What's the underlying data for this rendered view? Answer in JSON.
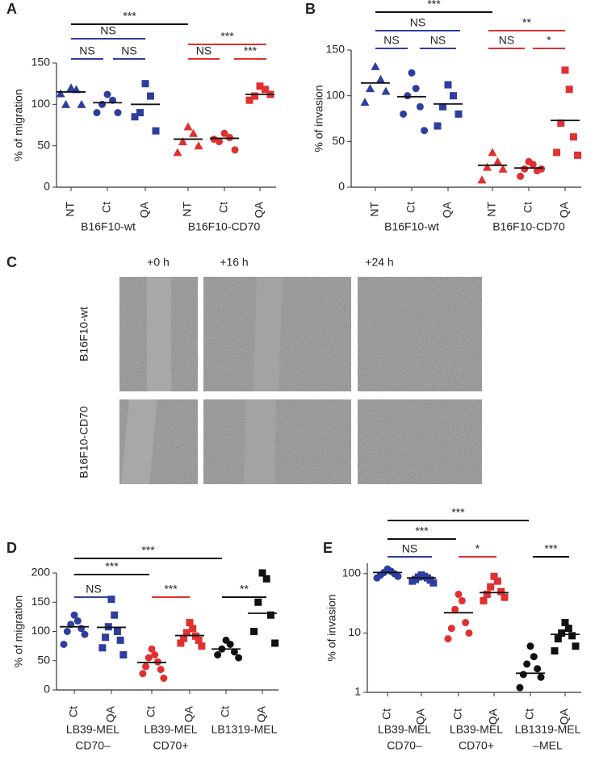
{
  "chart_data": [
    {
      "type": "dot",
      "label": "A",
      "ylabel": "% of migration",
      "ylim": [
        0,
        150
      ],
      "yticks": [
        0,
        50,
        100,
        150
      ],
      "groups": [
        {
          "name": [
            "B16F10-wt"
          ],
          "color": "#2e3da0",
          "categories": [
            "NT",
            "Ct",
            "QA"
          ],
          "markers": [
            "triangle",
            "circle",
            "square"
          ],
          "values": [
            [
              120,
              118,
              100,
              100,
              113
            ],
            [
              112,
              105,
              100,
              90,
              90
            ],
            [
              125,
              110,
              90,
              68,
              85
            ]
          ],
          "means": [
            115,
            102,
            100
          ]
        },
        {
          "name": [
            "B16F10-CD70"
          ],
          "color": "#e0302f",
          "categories": [
            "NT",
            "Ct",
            "QA"
          ],
          "markers": [
            "triangle",
            "circle",
            "square"
          ],
          "values": [
            [
              73,
              65,
              55,
              50,
              42
            ],
            [
              65,
              60,
              55,
              45,
              58
            ],
            [
              122,
              118,
              110,
              112,
              105
            ]
          ],
          "means": [
            58,
            59,
            112
          ]
        }
      ],
      "brackets": [
        {
          "text": "***",
          "color": "#111111"
        },
        {
          "text": "NS",
          "color": "#2e3da0"
        },
        {
          "text": "***",
          "color": "#e0302f"
        },
        {
          "text": "NS",
          "color": "#2e3da0"
        },
        {
          "text": "NS",
          "color": "#2e3da0"
        },
        {
          "text": "NS",
          "color": "#e0302f"
        },
        {
          "text": "***",
          "color": "#e0302f"
        }
      ]
    },
    {
      "type": "dot",
      "label": "B",
      "ylabel": "% of invasion",
      "ylim": [
        0,
        150
      ],
      "yticks": [
        0,
        50,
        100,
        150
      ],
      "groups": [
        {
          "name": [
            "B16F10-wt"
          ],
          "color": "#2e3da0",
          "categories": [
            "NT",
            "Ct",
            "QA"
          ],
          "markers": [
            "triangle",
            "circle",
            "square"
          ],
          "values": [
            [
              132,
              118,
              108,
              105,
              93
            ],
            [
              125,
              108,
              100,
              88,
              80,
              62
            ],
            [
              112,
              100,
              88,
              80,
              67
            ]
          ],
          "means": [
            114,
            99,
            91
          ]
        },
        {
          "name": [
            "B16F10-CD70"
          ],
          "color": "#e0302f",
          "categories": [
            "NT",
            "Ct",
            "QA"
          ],
          "markers": [
            "triangle",
            "circle",
            "square"
          ],
          "values": [
            [
              38,
              28,
              22,
              20,
              8
            ],
            [
              28,
              25,
              20,
              18,
              12,
              20
            ],
            [
              128,
              107,
              70,
              55,
              38,
              35
            ]
          ],
          "means": [
            24,
            21,
            73
          ]
        }
      ],
      "brackets": [
        {
          "text": "***",
          "color": "#111111"
        },
        {
          "text": "NS",
          "color": "#2e3da0"
        },
        {
          "text": "**",
          "color": "#e0302f"
        },
        {
          "text": "NS",
          "color": "#2e3da0"
        },
        {
          "text": "NS",
          "color": "#2e3da0"
        },
        {
          "text": "NS",
          "color": "#e0302f"
        },
        {
          "text": "*",
          "color": "#e0302f"
        }
      ]
    },
    {
      "type": "dot",
      "label": "D",
      "ylabel": "% of migration",
      "ylim": [
        0,
        200
      ],
      "yticks": [
        0,
        50,
        100,
        150,
        200
      ],
      "groups": [
        {
          "name": [
            "LB39-MEL",
            "CD70–"
          ],
          "color": "#2e3da0",
          "categories": [
            "Ct",
            "QA"
          ],
          "markers": [
            "circle",
            "square"
          ],
          "values": [
            [
              128,
              118,
              112,
              105,
              100,
              95,
              78
            ],
            [
              155,
              128,
              108,
              100,
              90,
              85,
              72,
              60
            ]
          ],
          "means": [
            108,
            107
          ]
        },
        {
          "name": [
            "LB39-MEL",
            "CD70+"
          ],
          "color": "#e0302f",
          "categories": [
            "Ct",
            "QA"
          ],
          "markers": [
            "circle",
            "square"
          ],
          "values": [
            [
              70,
              60,
              55,
              48,
              40,
              35,
              28,
              20
            ],
            [
              115,
              105,
              98,
              92,
              88,
              85,
              80,
              75
            ]
          ],
          "means": [
            47,
            93
          ]
        },
        {
          "name": [
            "LB1319-MEL"
          ],
          "color": "#111111",
          "categories": [
            "Ct",
            "QA"
          ],
          "markers": [
            "circle",
            "square"
          ],
          "values": [
            [
              85,
              78,
              70,
              65,
              60,
              55
            ],
            [
              200,
              190,
              150,
              128,
              100,
              80
            ]
          ],
          "means": [
            70,
            131
          ]
        }
      ],
      "brackets": [
        {
          "text": "***",
          "color": "#111111"
        },
        {
          "text": "***",
          "color": "#111111"
        },
        {
          "text": "NS",
          "color": "#2e3da0"
        },
        {
          "text": "***",
          "color": "#e0302f"
        },
        {
          "text": "**",
          "color": "#111111"
        }
      ]
    },
    {
      "type": "dot",
      "label": "E",
      "ylabel": "% of invasion",
      "log": true,
      "ylim": [
        1,
        150
      ],
      "yticks": [
        1,
        10,
        100
      ],
      "groups": [
        {
          "name": [
            "LB39-MEL",
            "CD70–"
          ],
          "color": "#2e3da0",
          "categories": [
            "Ct",
            "QA"
          ],
          "markers": [
            "circle",
            "square"
          ],
          "values": [
            [
              120,
              110,
              105,
              100,
              95,
              90,
              85
            ],
            [
              95,
              90,
              88,
              85,
              80,
              78,
              75,
              70
            ]
          ],
          "means": [
            105,
            85
          ]
        },
        {
          "name": [
            "LB39-MEL",
            "CD70+"
          ],
          "color": "#e0302f",
          "categories": [
            "Ct",
            "QA"
          ],
          "markers": [
            "circle",
            "square"
          ],
          "values": [
            [
              45,
              35,
              25,
              15,
              12,
              10,
              8
            ],
            [
              90,
              75,
              60,
              50,
              45,
              40,
              35
            ]
          ],
          "means": [
            22,
            48
          ]
        },
        {
          "name": [
            "LB1319-MEL",
            "–MEL"
          ],
          "color": "#111111",
          "categories": [
            "Ct",
            "QA"
          ],
          "markers": [
            "circle",
            "square"
          ],
          "values": [
            [
              6,
              4,
              3,
              2.5,
              2,
              1.8,
              1.2
            ],
            [
              15,
              12,
              10,
              9,
              8,
              6,
              5
            ]
          ],
          "means": [
            2.1,
            9.5
          ]
        }
      ],
      "brackets": [
        {
          "text": "***",
          "color": "#111111"
        },
        {
          "text": "***",
          "color": "#111111"
        },
        {
          "text": "NS",
          "color": "#2e3da0"
        },
        {
          "text": "*",
          "color": "#e0302f"
        },
        {
          "text": "***",
          "color": "#111111"
        }
      ]
    }
  ],
  "panel_c": {
    "label": "C",
    "columns": [
      "+0 h",
      "+16 h",
      "+24 h"
    ],
    "rows": [
      {
        "label": "B16F10-wt",
        "color": "#2e3da0"
      },
      {
        "label": "B16F10-CD70",
        "color": "#e0302f"
      }
    ]
  }
}
